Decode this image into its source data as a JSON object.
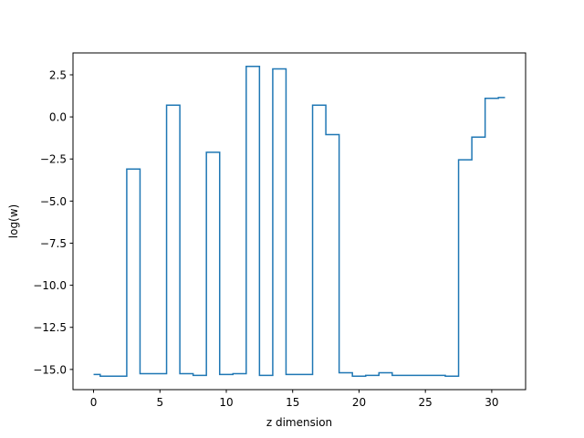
{
  "chart_data": {
    "type": "line",
    "style": "steps-mid",
    "xlabel": "z dimension",
    "ylabel": "log(w)",
    "xlim": [
      -1.55,
      32.55
    ],
    "ylim": [
      -16.2,
      3.8
    ],
    "xticks": [
      0,
      5,
      10,
      15,
      20,
      25,
      30
    ],
    "xtick_labels": [
      "0",
      "5",
      "10",
      "15",
      "20",
      "25",
      "30"
    ],
    "yticks": [
      2.5,
      0.0,
      -2.5,
      -5.0,
      -7.5,
      -10.0,
      -12.5,
      -15.0
    ],
    "ytick_labels": [
      "2.5",
      "0.0",
      "−2.5",
      "−5.0",
      "−7.5",
      "−10.0",
      "−12.5",
      "−15.0"
    ],
    "grid": false,
    "series": [
      {
        "color": "#1f77b4",
        "x": [
          0,
          1,
          2,
          3,
          4,
          5,
          6,
          7,
          8,
          9,
          10,
          11,
          12,
          13,
          14,
          15,
          16,
          17,
          18,
          19,
          20,
          21,
          22,
          23,
          24,
          25,
          26,
          27,
          28,
          29,
          30,
          31
        ],
        "y": [
          -15.3,
          -15.4,
          -15.4,
          -3.1,
          -15.25,
          -15.25,
          0.7,
          -15.25,
          -15.35,
          -2.1,
          -15.3,
          -15.25,
          3.0,
          -15.35,
          2.85,
          -15.3,
          -15.3,
          0.7,
          -1.05,
          -15.2,
          -15.4,
          -15.35,
          -15.2,
          -15.35,
          -15.35,
          -15.35,
          -15.35,
          -15.4,
          -2.55,
          -1.2,
          1.1,
          1.15
        ]
      }
    ]
  }
}
